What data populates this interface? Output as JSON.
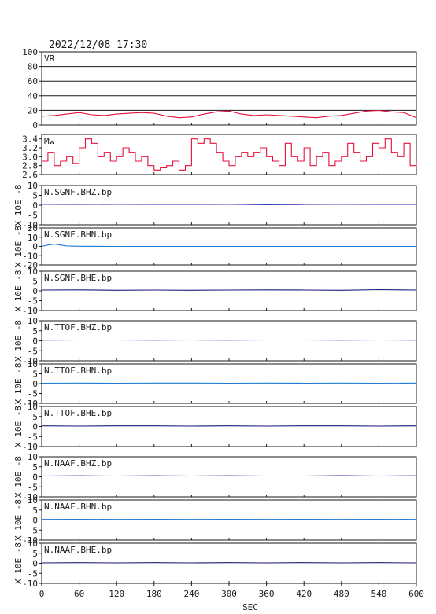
{
  "header": {
    "timestamp": "2022/12/08 17:30"
  },
  "chart_data": {
    "type": "line",
    "xlabel": "SEC",
    "x_ticks": [
      0,
      60,
      120,
      180,
      240,
      300,
      360,
      420,
      480,
      540,
      600
    ],
    "xlim": [
      0,
      600
    ],
    "panels": [
      {
        "label": "VR",
        "ylabel": "",
        "ylim": [
          0,
          100
        ],
        "y_ticks": [
          0,
          20,
          40,
          60,
          80,
          100
        ],
        "grid": true,
        "color": "#e8103a",
        "series": {
          "x": [
            0,
            20,
            40,
            60,
            80,
            100,
            120,
            140,
            160,
            180,
            200,
            220,
            240,
            260,
            280,
            300,
            320,
            340,
            360,
            380,
            400,
            420,
            440,
            460,
            480,
            500,
            520,
            540,
            560,
            580,
            600
          ],
          "y": [
            12,
            13,
            15,
            17,
            14,
            13,
            15,
            16,
            17,
            16,
            12,
            10,
            11,
            15,
            18,
            19,
            15,
            13,
            14,
            13,
            12,
            11,
            10,
            12,
            13,
            16,
            19,
            20,
            18,
            17,
            10
          ]
        }
      },
      {
        "label": "Mw",
        "ylabel": "",
        "ylim": [
          2.6,
          3.5
        ],
        "y_ticks": [
          2.6,
          2.8,
          3.0,
          3.2,
          3.4
        ],
        "y_tick_labels": [
          "2.6",
          "2.8",
          "3.0",
          "3.2",
          "3.4"
        ],
        "grid": false,
        "color": "#e8103a",
        "series": {
          "x": [
            0,
            10,
            20,
            30,
            40,
            50,
            60,
            70,
            80,
            90,
            100,
            110,
            120,
            130,
            140,
            150,
            160,
            170,
            180,
            190,
            200,
            210,
            220,
            230,
            240,
            250,
            260,
            270,
            280,
            290,
            300,
            310,
            320,
            330,
            340,
            350,
            360,
            370,
            380,
            390,
            400,
            410,
            420,
            430,
            440,
            450,
            460,
            470,
            480,
            490,
            500,
            510,
            520,
            530,
            540,
            550,
            560,
            570,
            580,
            590,
            600
          ],
          "y": [
            2.9,
            3.1,
            2.8,
            2.9,
            3.0,
            2.85,
            3.2,
            3.4,
            3.3,
            3.0,
            3.1,
            2.9,
            3.0,
            3.2,
            3.1,
            2.9,
            3.0,
            2.8,
            2.7,
            2.75,
            2.8,
            2.9,
            2.7,
            2.8,
            3.4,
            3.3,
            3.4,
            3.3,
            3.1,
            2.9,
            2.8,
            3.0,
            3.1,
            3.0,
            3.1,
            3.2,
            3.0,
            2.9,
            2.8,
            3.3,
            3.0,
            2.9,
            3.2,
            2.8,
            3.0,
            3.1,
            2.8,
            2.9,
            3.0,
            3.3,
            3.1,
            2.9,
            3.0,
            3.3,
            3.2,
            3.4,
            3.1,
            3.0,
            3.3,
            2.8,
            2.9
          ]
        }
      },
      {
        "label": "N.SGNF.BHZ.bp",
        "ylabel": "X 10E -8",
        "ylim": [
          -10,
          10
        ],
        "y_ticks": [
          -10,
          -5,
          0,
          5,
          10
        ],
        "color": "#1a1aaa",
        "series": {
          "x": [
            0,
            60,
            120,
            180,
            240,
            300,
            360,
            420,
            480,
            540,
            600
          ],
          "y": [
            0.5,
            0.4,
            0.5,
            0.4,
            0.4,
            0.5,
            0.3,
            0.4,
            0.5,
            0.4,
            0.4
          ]
        }
      },
      {
        "label": "N.SGNF.BHN.bp",
        "ylabel": "X 10E -8",
        "ylim": [
          -20,
          20
        ],
        "y_ticks": [
          -20,
          -10,
          0,
          10,
          20
        ],
        "color": "#1f7ad6",
        "series": {
          "x": [
            0,
            10,
            20,
            30,
            40,
            60,
            90,
            120,
            180,
            240,
            300,
            360,
            420,
            480,
            540,
            600
          ],
          "y": [
            0,
            1.5,
            2.5,
            1.5,
            0.5,
            0.2,
            0.1,
            0,
            0,
            0,
            0,
            0,
            0,
            0,
            0,
            0
          ]
        }
      },
      {
        "label": "N.SGNF.BHE.bp",
        "ylabel": "X 10E -8",
        "ylim": [
          -10,
          10
        ],
        "y_ticks": [
          -10,
          -5,
          0,
          5,
          10
        ],
        "color": "#1a1a7a",
        "series": {
          "x": [
            0,
            60,
            120,
            180,
            240,
            300,
            360,
            420,
            480,
            540,
            600
          ],
          "y": [
            0.4,
            0.5,
            0.3,
            0.4,
            0.3,
            0.4,
            0.5,
            0.4,
            0.3,
            0.6,
            0.4
          ]
        }
      },
      {
        "label": "N.TTOF.BHZ.bp",
        "ylabel": "X 10E -8",
        "ylim": [
          -10,
          10
        ],
        "y_ticks": [
          -10,
          -5,
          0,
          5,
          10
        ],
        "color": "#1a1aaa",
        "series": {
          "x": [
            0,
            60,
            120,
            180,
            240,
            300,
            360,
            420,
            480,
            540,
            600
          ],
          "y": [
            0.3,
            0.4,
            0.4,
            0.3,
            0.4,
            0.3,
            0.4,
            0.4,
            0.3,
            0.4,
            0.3
          ]
        }
      },
      {
        "label": "N.TTOF.BHN.bp",
        "ylabel": "X 10E -8",
        "ylim": [
          -10,
          10
        ],
        "y_ticks": [
          -10,
          -5,
          0,
          5,
          10
        ],
        "color": "#1f7ad6",
        "series": {
          "x": [
            0,
            60,
            120,
            180,
            240,
            300,
            360,
            420,
            480,
            540,
            600
          ],
          "y": [
            0.2,
            0.3,
            0.2,
            0.3,
            0.3,
            0.2,
            0.3,
            0.2,
            0.3,
            0.2,
            0.3
          ]
        }
      },
      {
        "label": "N.TTOF.BHE.bp",
        "ylabel": "X 10E -8",
        "ylim": [
          -10,
          10
        ],
        "y_ticks": [
          -10,
          -5,
          0,
          5,
          10
        ],
        "color": "#1a1a7a",
        "series": {
          "x": [
            0,
            60,
            120,
            180,
            240,
            300,
            360,
            420,
            480,
            540,
            600
          ],
          "y": [
            0.3,
            0.2,
            0.3,
            0.3,
            0.2,
            0.3,
            0.2,
            0.3,
            0.3,
            0.2,
            0.3
          ]
        }
      },
      {
        "label": "N.NAAF.BHZ.bp",
        "ylabel": "X 10E -8",
        "ylim": [
          -10,
          10
        ],
        "y_ticks": [
          -10,
          -5,
          0,
          5,
          10
        ],
        "color": "#1a1aaa",
        "series": {
          "x": [
            0,
            60,
            120,
            180,
            240,
            300,
            360,
            420,
            480,
            540,
            600
          ],
          "y": [
            0.4,
            0.5,
            0.4,
            0.5,
            0.4,
            0.5,
            0.4,
            0.4,
            0.6,
            0.4,
            0.5
          ]
        }
      },
      {
        "label": "N.NAAF.BHN.bp",
        "ylabel": "X 10E -8",
        "ylim": [
          -10,
          10
        ],
        "y_ticks": [
          -10,
          -5,
          0,
          5,
          10
        ],
        "color": "#1f7ad6",
        "series": {
          "x": [
            0,
            60,
            120,
            180,
            240,
            300,
            360,
            420,
            480,
            540,
            600
          ],
          "y": [
            0.3,
            0.4,
            0.3,
            0.4,
            0.3,
            0.4,
            0.3,
            0.4,
            0.3,
            0.4,
            0.3
          ]
        }
      },
      {
        "label": "N.NAAF.BHE.bp",
        "ylabel": "X 10E -8",
        "ylim": [
          -10,
          10
        ],
        "y_ticks": [
          -10,
          -5,
          0,
          5,
          10
        ],
        "color": "#1a1a7a",
        "series": {
          "x": [
            0,
            60,
            120,
            180,
            240,
            300,
            360,
            420,
            480,
            540,
            600
          ],
          "y": [
            0.2,
            0.3,
            0.2,
            0.3,
            0.2,
            0.3,
            0.2,
            0.3,
            0.2,
            0.3,
            0.2
          ]
        }
      }
    ]
  }
}
